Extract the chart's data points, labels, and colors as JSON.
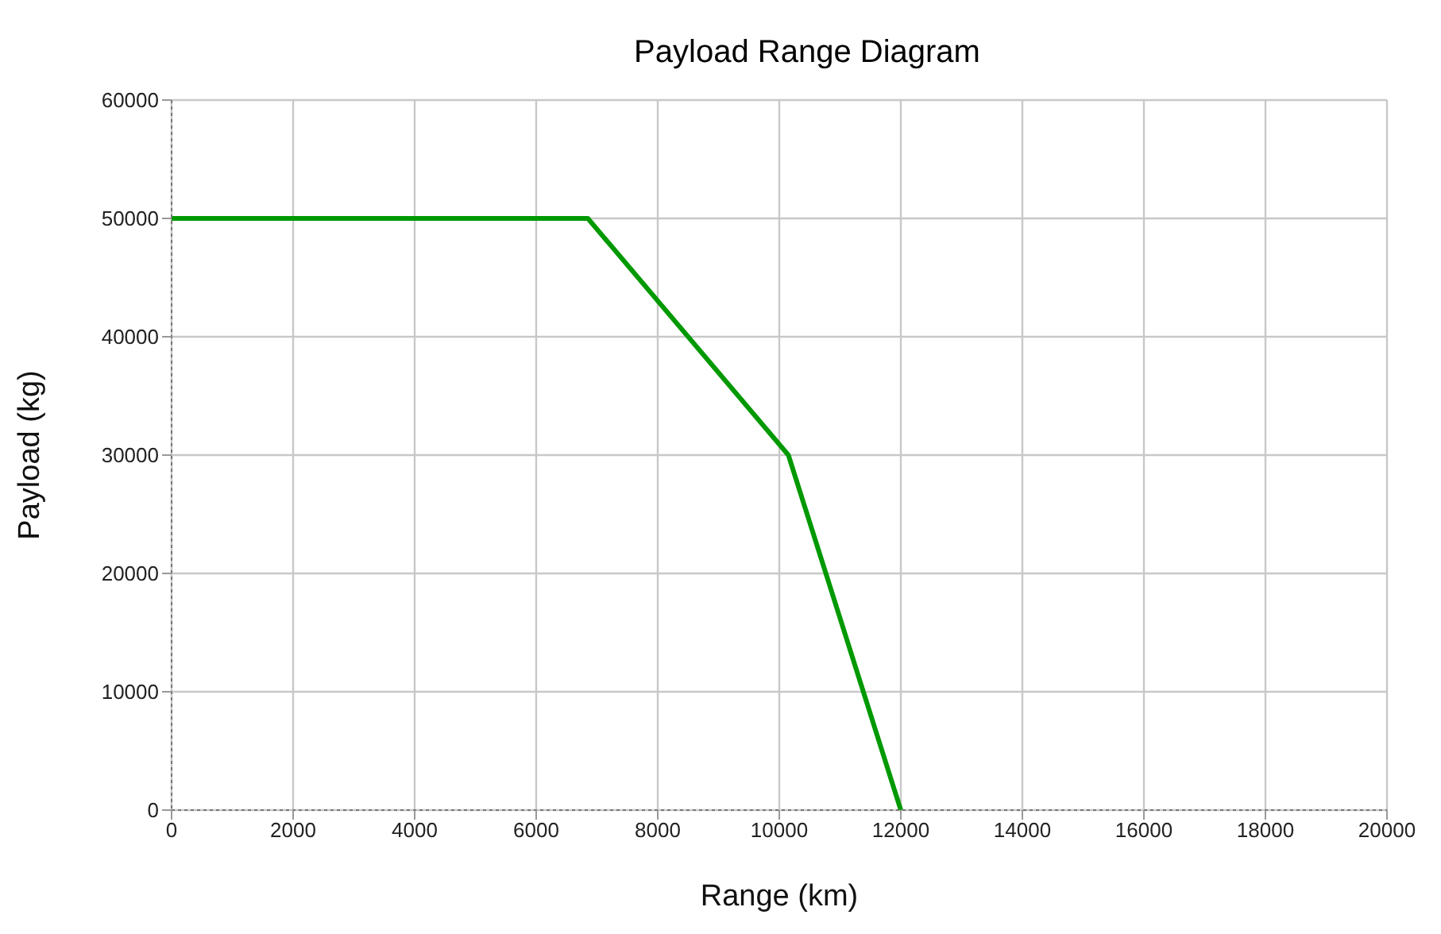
{
  "chart_data": {
    "type": "line",
    "title": "Payload Range Diagram",
    "xlabel": "Range (km)",
    "ylabel": "Payload (kg)",
    "x": [
      0,
      6850,
      10150,
      12000
    ],
    "series": [
      {
        "color": "#009900",
        "values": [
          50000,
          50000,
          30000,
          0
        ]
      }
    ],
    "xlim": [
      0,
      20000
    ],
    "xticks": [
      0,
      2000,
      4000,
      6000,
      8000,
      10000,
      12000,
      14000,
      16000,
      18000,
      20000
    ],
    "ylim": [
      0,
      60000
    ],
    "yticks": [
      0,
      10000,
      20000,
      30000,
      40000,
      50000,
      60000
    ],
    "grid": true,
    "legend": false,
    "marker": "none",
    "line_style": "solid"
  }
}
